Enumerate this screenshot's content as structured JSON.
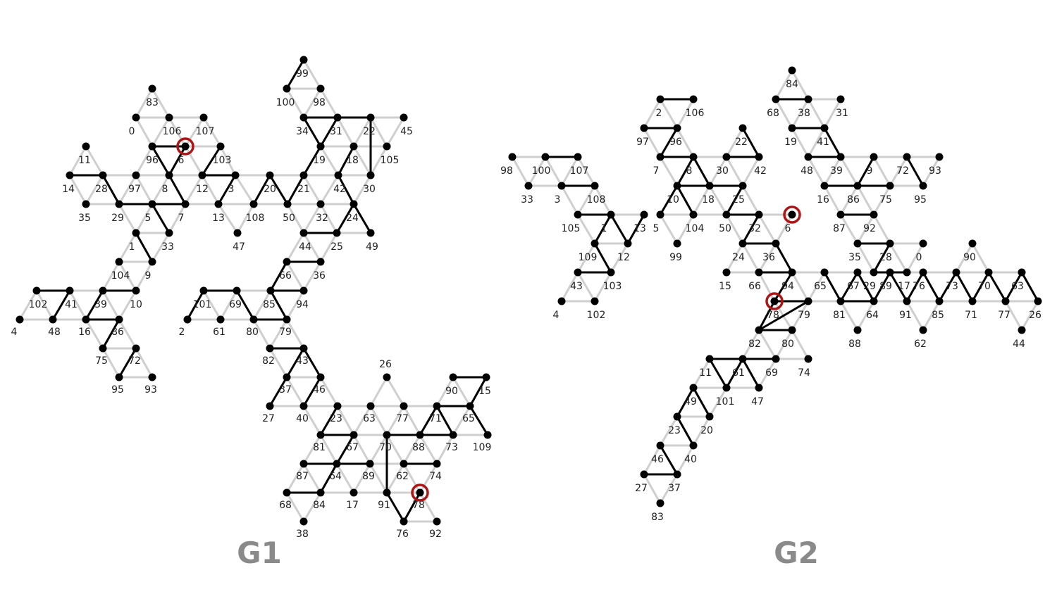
{
  "graphs": [
    {
      "name": "G1",
      "nodes": [
        "4",
        "102",
        "41",
        "39",
        "10",
        "48",
        "16",
        "86",
        "75",
        "72",
        "95",
        "93",
        "104",
        "9",
        "1",
        "33",
        "5",
        "7",
        "29",
        "97",
        "35",
        "28",
        "14",
        "11",
        "8",
        "12",
        "3",
        "13",
        "108",
        "47",
        "20",
        "50",
        "21",
        "32",
        "42",
        "24",
        "49",
        "30",
        "105",
        "18",
        "22",
        "45",
        "19",
        "31",
        "34",
        "98",
        "99",
        "100",
        "83",
        "0",
        "106",
        "107",
        "96",
        "6",
        "103",
        "44",
        "25",
        "66",
        "36",
        "85",
        "94",
        "101",
        "69",
        "2",
        "61",
        "80",
        "79",
        "82",
        "43",
        "37",
        "46",
        "27",
        "40",
        "23",
        "81",
        "67",
        "64",
        "87",
        "89",
        "68",
        "84",
        "17",
        "38",
        "26",
        "63",
        "77",
        "71",
        "90",
        "15",
        "65",
        "70",
        "88",
        "73",
        "109",
        "62",
        "74",
        "91",
        "78",
        "76",
        "92"
      ],
      "highlighted": [
        "6",
        "78"
      ]
    },
    {
      "name": "G2",
      "nodes": [
        "98",
        "100",
        "107",
        "33",
        "3",
        "108",
        "105",
        "1",
        "13",
        "109",
        "12",
        "43",
        "103",
        "4",
        "102",
        "97",
        "96",
        "2",
        "106",
        "7",
        "8",
        "5",
        "10",
        "104",
        "99",
        "30",
        "18",
        "25",
        "22",
        "42",
        "50",
        "32",
        "6",
        "24",
        "36",
        "15",
        "66",
        "94",
        "78",
        "79",
        "65",
        "67",
        "89",
        "76",
        "73",
        "70",
        "63",
        "81",
        "64",
        "91",
        "85",
        "71",
        "77",
        "26",
        "88",
        "62",
        "44",
        "90",
        "84",
        "68",
        "38",
        "31",
        "19",
        "41",
        "48",
        "39",
        "9",
        "72",
        "93",
        "16",
        "86",
        "75",
        "95",
        "87",
        "92",
        "35",
        "28",
        "0",
        "29",
        "17",
        "82",
        "80",
        "69",
        "74",
        "11",
        "61",
        "101",
        "47",
        "49",
        "20",
        "23",
        "40",
        "46",
        "27",
        "37",
        "83"
      ],
      "highlighted": [
        "6",
        "78"
      ]
    }
  ]
}
